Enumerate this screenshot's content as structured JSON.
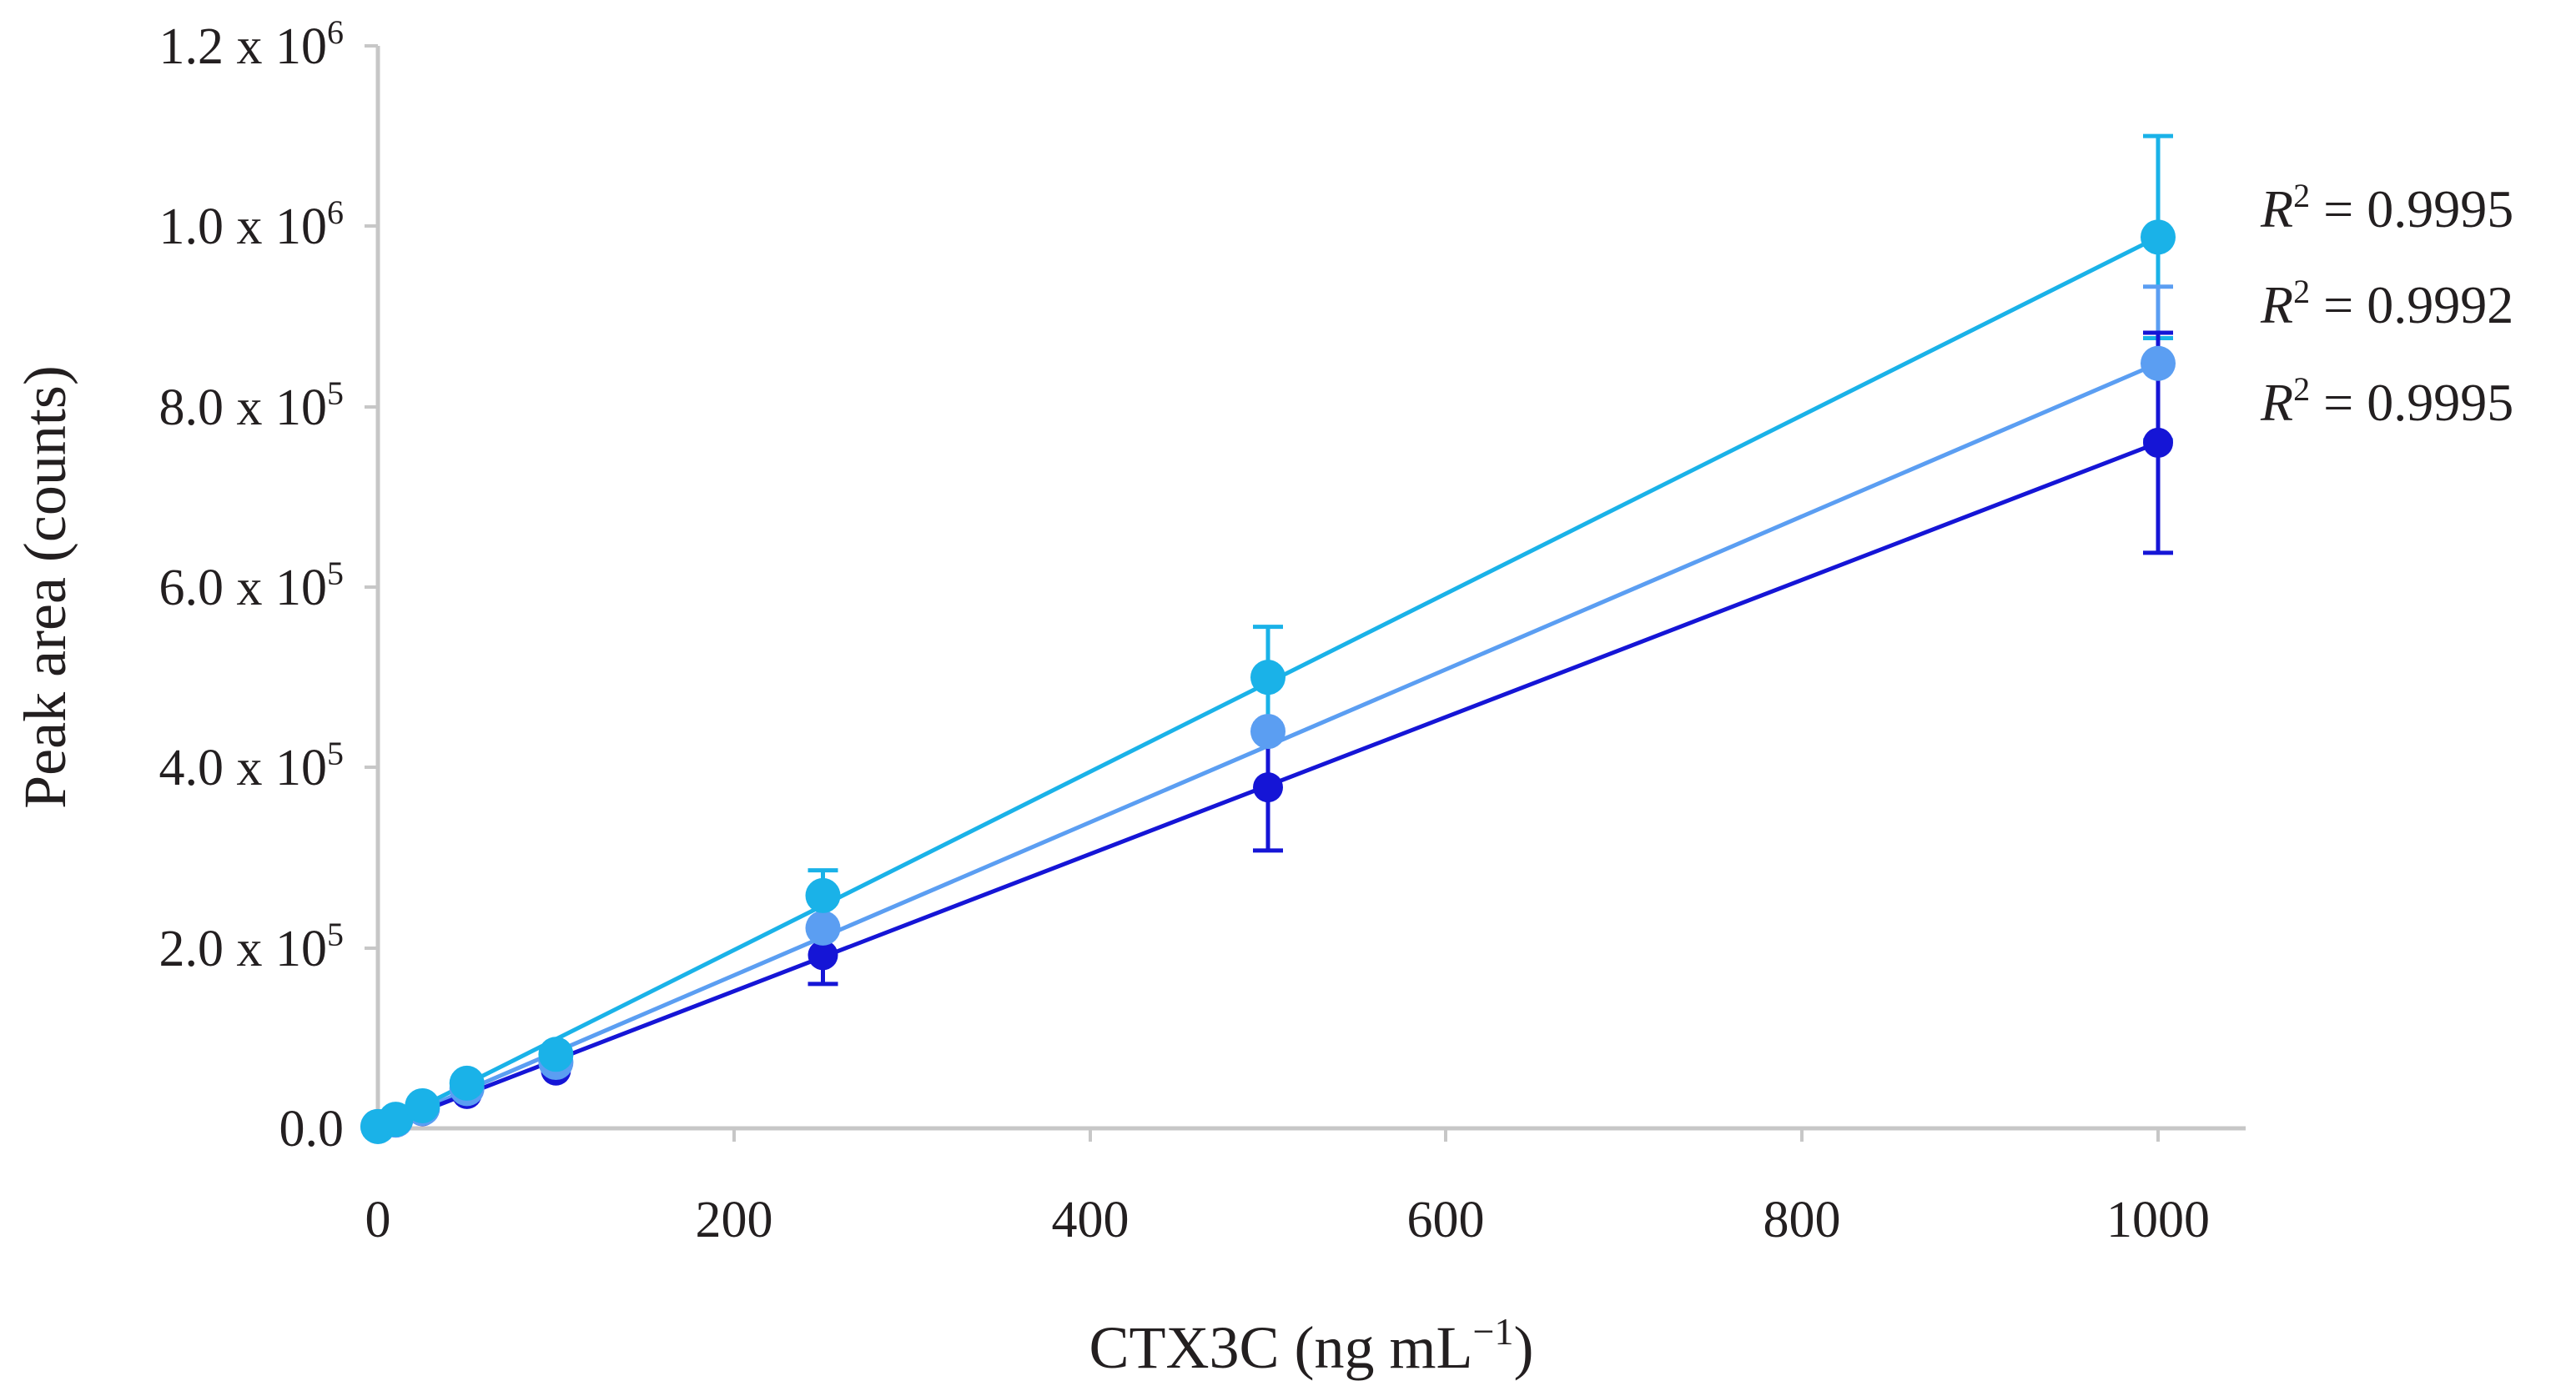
{
  "chart_data": {
    "type": "scatter",
    "xlabel": {
      "main": "CTX3C (ng mL",
      "sup": "−1",
      "close": ")"
    },
    "ylabel": "Peak area (counts)",
    "xlim": [
      0,
      1050
    ],
    "ylim": [
      0,
      1200000
    ],
    "x_ticks": [
      0,
      200,
      400,
      600,
      800,
      1000
    ],
    "x_tick_labels": [
      "0",
      "200",
      "400",
      "600",
      "800",
      "1000"
    ],
    "y_ticks": [
      {
        "value": 0,
        "mantissa": "0.0",
        "times": "",
        "base": "",
        "exp": ""
      },
      {
        "value": 200000,
        "mantissa": "2.0",
        "times": " x ",
        "base": "10",
        "exp": "5"
      },
      {
        "value": 400000,
        "mantissa": "4.0",
        "times": " x ",
        "base": "10",
        "exp": "5"
      },
      {
        "value": 600000,
        "mantissa": "6.0",
        "times": " x ",
        "base": "10",
        "exp": "5"
      },
      {
        "value": 800000,
        "mantissa": "8.0",
        "times": " x ",
        "base": "10",
        "exp": "5"
      },
      {
        "value": 1000000,
        "mantissa": "1.0",
        "times": " x ",
        "base": "10",
        "exp": "6"
      },
      {
        "value": 1200000,
        "mantissa": "1.2",
        "times": " x ",
        "base": "10",
        "exp": "6"
      }
    ],
    "series": [
      {
        "name": "series-cyan",
        "color": "#1ab2e8",
        "r2_symbol": "R",
        "r2_sup": "2",
        "r2_value": " = 0.9995",
        "x": [
          0,
          10,
          25,
          50,
          100,
          250,
          500,
          1000
        ],
        "y": [
          2000,
          10000,
          25000,
          50000,
          82000,
          258000,
          500000,
          988000
        ],
        "err": [
          0,
          0,
          0,
          0,
          0,
          28000,
          56000,
          112000
        ],
        "fit": [
          [
            0,
            0
          ],
          [
            1000,
            988000
          ]
        ]
      },
      {
        "name": "series-light-blue",
        "color": "#5b9ef2",
        "r2_symbol": "R",
        "r2_sup": "2",
        "r2_value": " = 0.9992",
        "x": [
          0,
          10,
          25,
          50,
          100,
          250,
          500,
          1000
        ],
        "y": [
          2000,
          9000,
          22000,
          44000,
          73000,
          222000,
          440000,
          848000
        ],
        "err": [
          0,
          0,
          0,
          0,
          0,
          0,
          0,
          85000
        ],
        "fit": [
          [
            0,
            0
          ],
          [
            1000,
            848000
          ]
        ]
      },
      {
        "name": "series-dark-blue",
        "color": "#1515d6",
        "r2_symbol": "R",
        "r2_sup": "2",
        "r2_value": " = 0.9995",
        "x": [
          0,
          10,
          25,
          50,
          100,
          250,
          500,
          1000
        ],
        "y": [
          1000,
          7000,
          19000,
          38000,
          64000,
          192000,
          378000,
          760000
        ],
        "err": [
          0,
          0,
          0,
          0,
          0,
          32000,
          70000,
          122000
        ],
        "fit": [
          [
            0,
            0
          ],
          [
            1000,
            760000
          ]
        ]
      }
    ]
  }
}
